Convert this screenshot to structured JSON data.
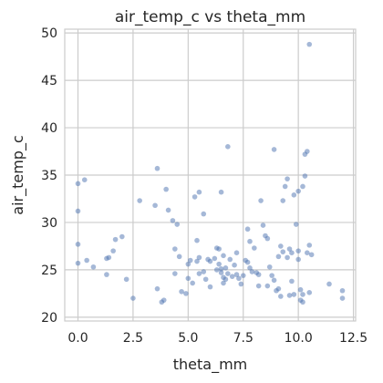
{
  "chart_data": {
    "type": "scatter",
    "title": "air_temp_c vs theta_mm",
    "xlabel": "theta_mm",
    "ylabel": "air_temp_c",
    "xlim": [
      -0.6,
      12.6
    ],
    "ylim": [
      19.6,
      50.4
    ],
    "xticks": [
      0,
      2.5,
      5,
      7.5,
      10,
      12.5
    ],
    "xtick_labels": [
      "0.0",
      "2.5",
      "5.0",
      "7.5",
      "10.0",
      "12.5"
    ],
    "yticks": [
      20,
      25,
      30,
      35,
      40,
      45,
      50
    ],
    "ytick_labels": [
      "20",
      "25",
      "30",
      "35",
      "40",
      "45",
      "50"
    ],
    "grid": true,
    "legend": false,
    "point_color": "#4c72b0",
    "points": [
      {
        "x": 0.0,
        "y": 34.1
      },
      {
        "x": 0.3,
        "y": 34.5
      },
      {
        "x": 0.0,
        "y": 31.2
      },
      {
        "x": 0.0,
        "y": 27.7
      },
      {
        "x": 0.0,
        "y": 25.7
      },
      {
        "x": 0.4,
        "y": 26.0
      },
      {
        "x": 0.7,
        "y": 25.3
      },
      {
        "x": 1.3,
        "y": 26.2
      },
      {
        "x": 1.4,
        "y": 26.3
      },
      {
        "x": 1.3,
        "y": 24.5
      },
      {
        "x": 1.6,
        "y": 27.0
      },
      {
        "x": 1.7,
        "y": 28.2
      },
      {
        "x": 2.0,
        "y": 28.5
      },
      {
        "x": 2.2,
        "y": 24.0
      },
      {
        "x": 2.5,
        "y": 22.0
      },
      {
        "x": 2.8,
        "y": 32.3
      },
      {
        "x": 3.5,
        "y": 31.8
      },
      {
        "x": 3.6,
        "y": 35.7
      },
      {
        "x": 3.9,
        "y": 21.8
      },
      {
        "x": 3.8,
        "y": 21.6
      },
      {
        "x": 3.6,
        "y": 23.0
      },
      {
        "x": 4.0,
        "y": 33.5
      },
      {
        "x": 4.1,
        "y": 31.3
      },
      {
        "x": 4.3,
        "y": 30.2
      },
      {
        "x": 4.4,
        "y": 27.2
      },
      {
        "x": 4.5,
        "y": 29.8
      },
      {
        "x": 4.4,
        "y": 24.6
      },
      {
        "x": 4.6,
        "y": 26.4
      },
      {
        "x": 4.7,
        "y": 22.7
      },
      {
        "x": 4.9,
        "y": 22.5
      },
      {
        "x": 5.0,
        "y": 25.6
      },
      {
        "x": 5.1,
        "y": 26.0
      },
      {
        "x": 5.0,
        "y": 24.1
      },
      {
        "x": 5.2,
        "y": 23.6
      },
      {
        "x": 5.3,
        "y": 32.7
      },
      {
        "x": 5.4,
        "y": 28.1
      },
      {
        "x": 5.5,
        "y": 33.2
      },
      {
        "x": 5.4,
        "y": 25.9
      },
      {
        "x": 5.5,
        "y": 26.3
      },
      {
        "x": 5.5,
        "y": 24.6
      },
      {
        "x": 5.7,
        "y": 30.9
      },
      {
        "x": 5.7,
        "y": 24.8
      },
      {
        "x": 5.8,
        "y": 24.0
      },
      {
        "x": 5.9,
        "y": 26.1
      },
      {
        "x": 6.0,
        "y": 25.9
      },
      {
        "x": 6.0,
        "y": 23.2
      },
      {
        "x": 6.2,
        "y": 26.2
      },
      {
        "x": 6.3,
        "y": 27.3
      },
      {
        "x": 6.3,
        "y": 25.0
      },
      {
        "x": 6.4,
        "y": 27.2
      },
      {
        "x": 6.4,
        "y": 25.6
      },
      {
        "x": 6.5,
        "y": 25.1
      },
      {
        "x": 6.5,
        "y": 24.7
      },
      {
        "x": 6.6,
        "y": 26.5
      },
      {
        "x": 6.6,
        "y": 24.2
      },
      {
        "x": 6.6,
        "y": 23.6
      },
      {
        "x": 6.7,
        "y": 25.2
      },
      {
        "x": 6.7,
        "y": 24.0
      },
      {
        "x": 6.8,
        "y": 24.6
      },
      {
        "x": 6.9,
        "y": 26.1
      },
      {
        "x": 6.8,
        "y": 38.0
      },
      {
        "x": 6.5,
        "y": 33.2
      },
      {
        "x": 7.0,
        "y": 24.3
      },
      {
        "x": 7.1,
        "y": 25.5
      },
      {
        "x": 7.2,
        "y": 24.5
      },
      {
        "x": 7.2,
        "y": 26.8
      },
      {
        "x": 7.3,
        "y": 24.1
      },
      {
        "x": 7.4,
        "y": 23.5
      },
      {
        "x": 7.5,
        "y": 24.4
      },
      {
        "x": 7.6,
        "y": 26.0
      },
      {
        "x": 7.7,
        "y": 25.8
      },
      {
        "x": 7.8,
        "y": 25.2
      },
      {
        "x": 7.7,
        "y": 29.3
      },
      {
        "x": 7.8,
        "y": 28.0
      },
      {
        "x": 7.9,
        "y": 24.8
      },
      {
        "x": 8.0,
        "y": 27.3
      },
      {
        "x": 8.1,
        "y": 24.7
      },
      {
        "x": 8.2,
        "y": 24.5
      },
      {
        "x": 8.2,
        "y": 23.3
      },
      {
        "x": 8.3,
        "y": 32.3
      },
      {
        "x": 8.4,
        "y": 29.7
      },
      {
        "x": 8.5,
        "y": 28.6
      },
      {
        "x": 8.6,
        "y": 23.3
      },
      {
        "x": 8.6,
        "y": 28.3
      },
      {
        "x": 8.7,
        "y": 25.3
      },
      {
        "x": 8.8,
        "y": 24.4
      },
      {
        "x": 8.9,
        "y": 37.7
      },
      {
        "x": 8.9,
        "y": 23.9
      },
      {
        "x": 9.0,
        "y": 22.8
      },
      {
        "x": 9.1,
        "y": 23.0
      },
      {
        "x": 9.2,
        "y": 27.5
      },
      {
        "x": 9.1,
        "y": 26.4
      },
      {
        "x": 9.2,
        "y": 22.2
      },
      {
        "x": 9.3,
        "y": 32.3
      },
      {
        "x": 9.3,
        "y": 26.9
      },
      {
        "x": 9.4,
        "y": 33.8
      },
      {
        "x": 9.5,
        "y": 34.6
      },
      {
        "x": 9.5,
        "y": 26.3
      },
      {
        "x": 9.6,
        "y": 27.2
      },
      {
        "x": 9.7,
        "y": 26.8
      },
      {
        "x": 9.7,
        "y": 23.8
      },
      {
        "x": 9.8,
        "y": 22.4
      },
      {
        "x": 9.8,
        "y": 32.9
      },
      {
        "x": 9.9,
        "y": 29.8
      },
      {
        "x": 10.0,
        "y": 33.3
      },
      {
        "x": 10.0,
        "y": 27.0
      },
      {
        "x": 10.0,
        "y": 26.1
      },
      {
        "x": 10.1,
        "y": 22.9
      },
      {
        "x": 10.1,
        "y": 21.8
      },
      {
        "x": 10.2,
        "y": 22.4
      },
      {
        "x": 10.2,
        "y": 33.8
      },
      {
        "x": 10.3,
        "y": 37.2
      },
      {
        "x": 10.3,
        "y": 34.9
      },
      {
        "x": 10.4,
        "y": 37.5
      },
      {
        "x": 10.4,
        "y": 26.8
      },
      {
        "x": 10.5,
        "y": 48.8
      },
      {
        "x": 10.5,
        "y": 27.6
      },
      {
        "x": 10.5,
        "y": 22.6
      },
      {
        "x": 10.6,
        "y": 26.6
      },
      {
        "x": 11.4,
        "y": 23.5
      },
      {
        "x": 12.0,
        "y": 22.8
      },
      {
        "x": 12.0,
        "y": 22.0
      },
      {
        "x": 10.2,
        "y": 21.6
      },
      {
        "x": 9.6,
        "y": 22.3
      }
    ]
  }
}
